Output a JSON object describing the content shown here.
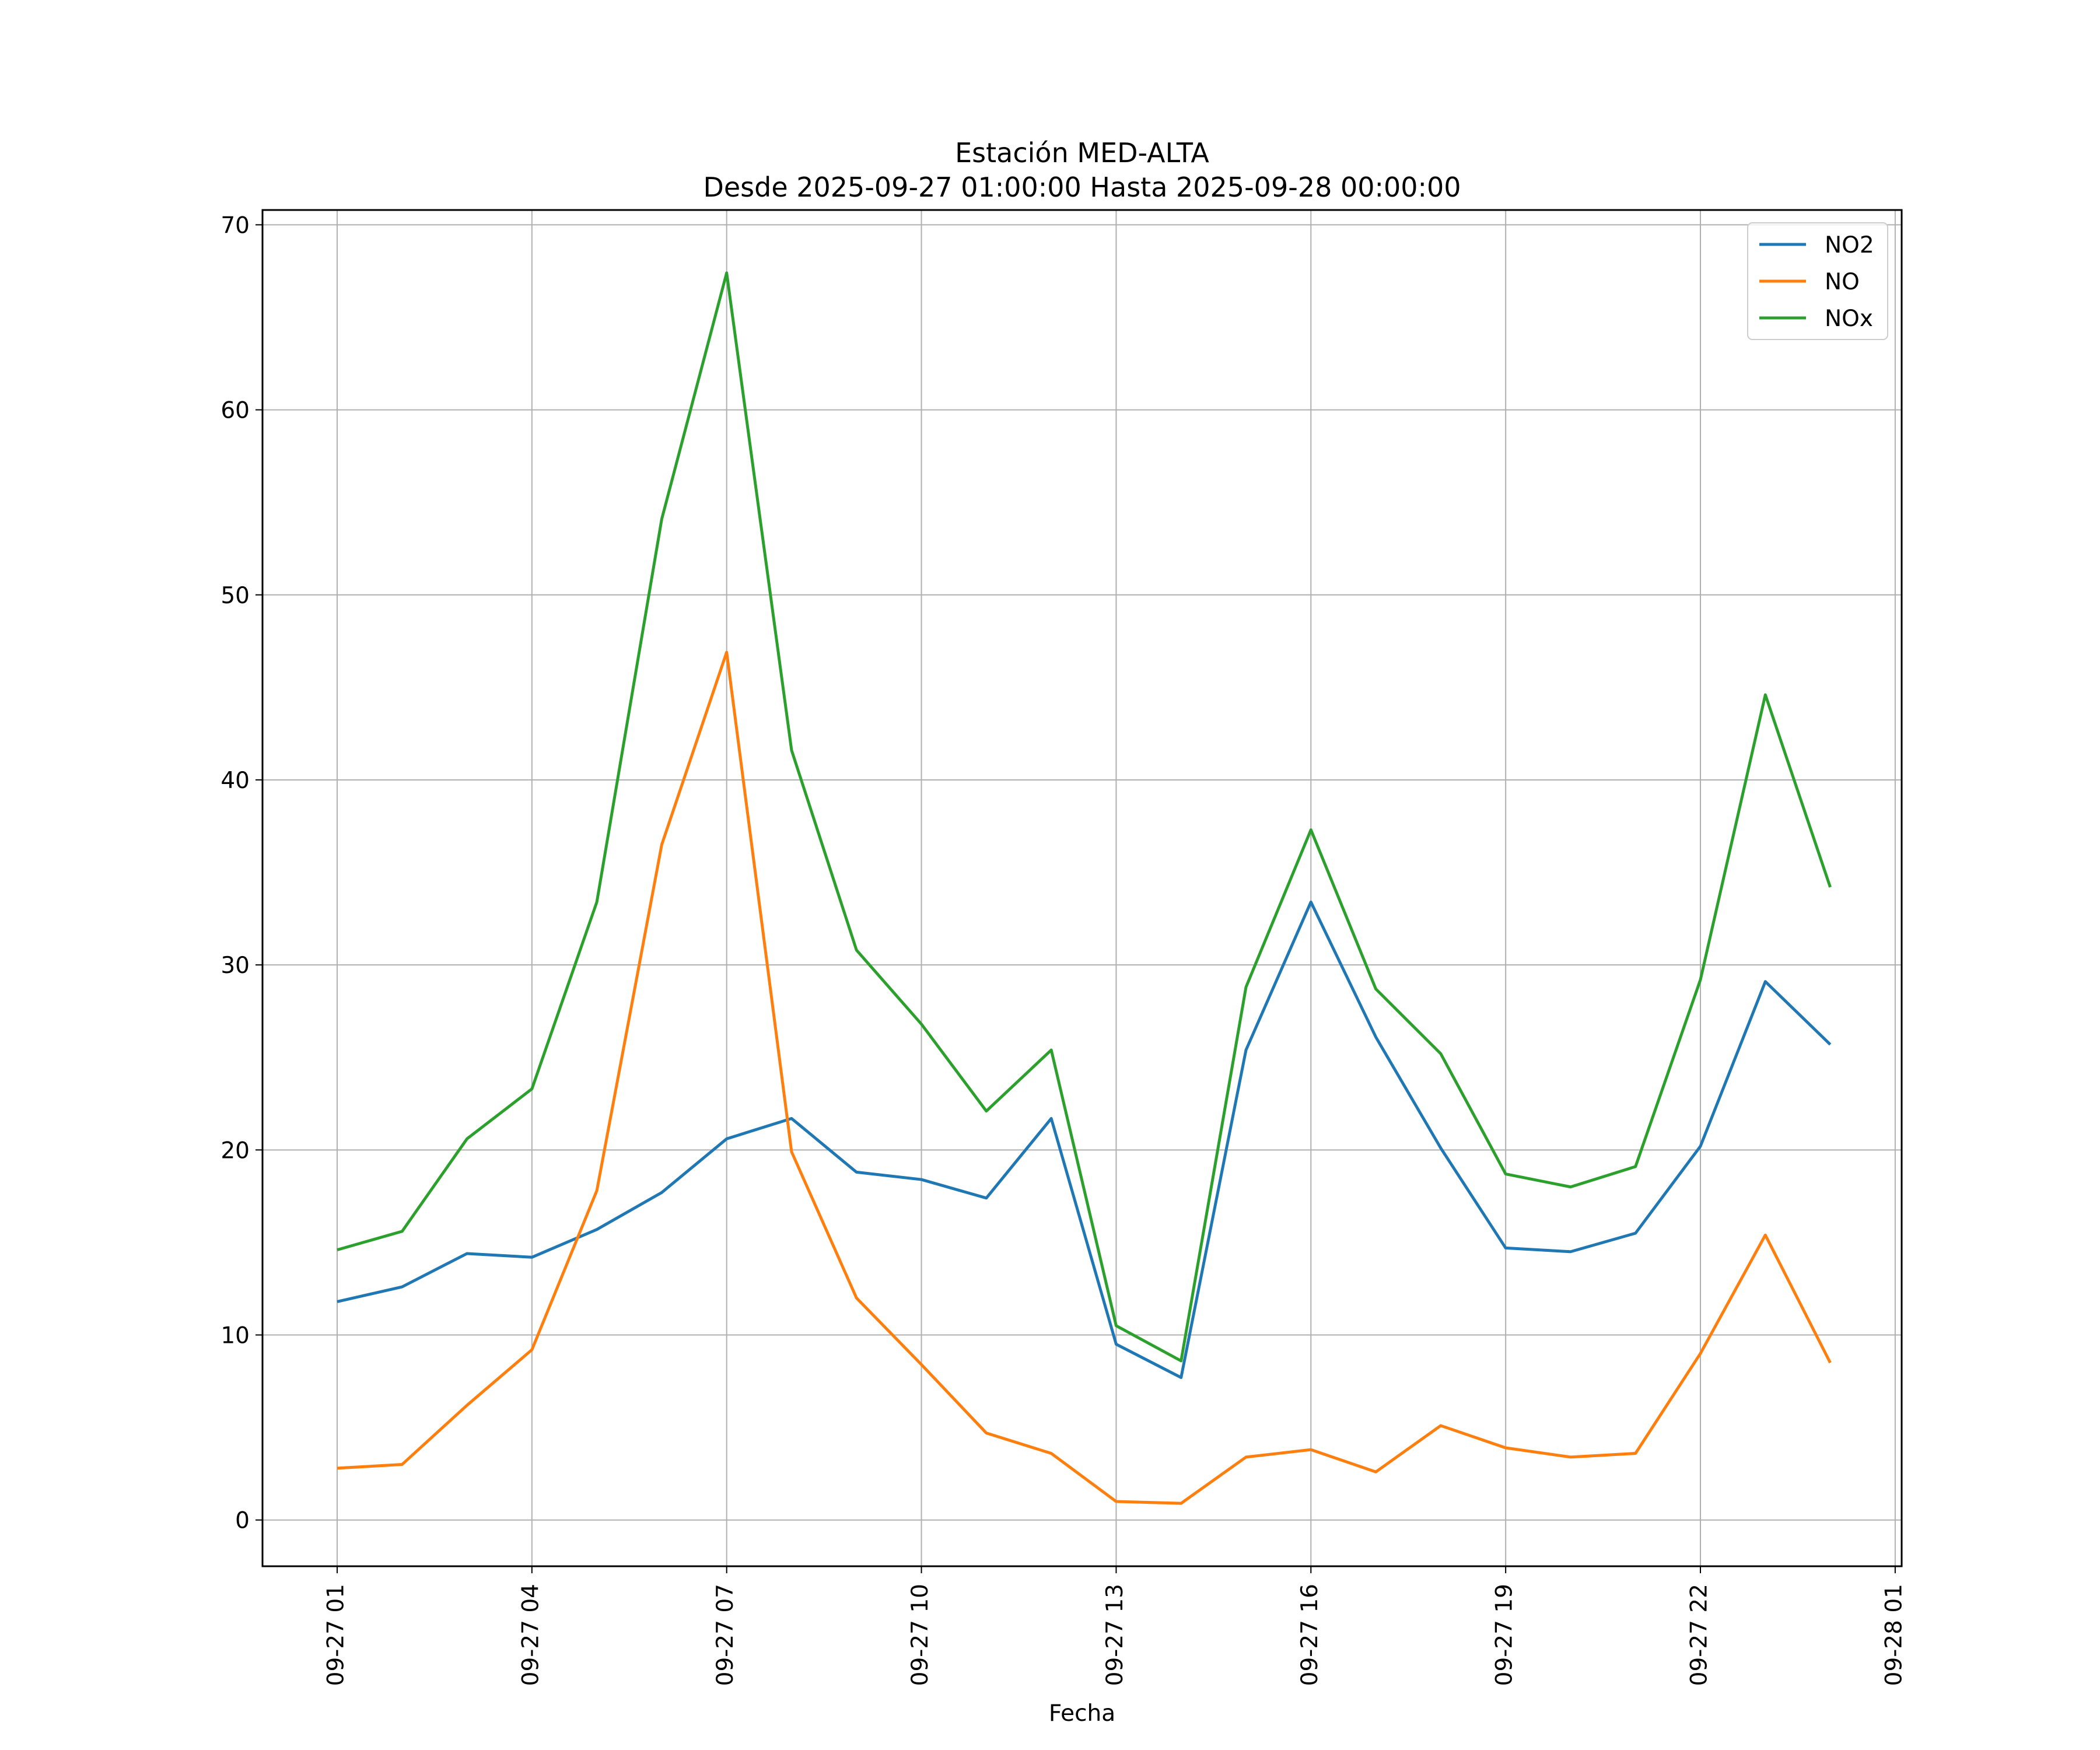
{
  "chart_data": {
    "type": "line",
    "title_line1": "Estación MED-ALTA",
    "title_line2": "Desde 2025-09-27 01:00:00 Hasta 2025-09-28 00:00:00",
    "xlabel": "Fecha",
    "ylabel": "",
    "x_hours": [
      1,
      2,
      3,
      4,
      5,
      6,
      7,
      8,
      9,
      10,
      11,
      12,
      13,
      14,
      15,
      16,
      17,
      18,
      19,
      20,
      21,
      22,
      23,
      24
    ],
    "xlim_hours": [
      -0.15,
      25.1
    ],
    "ylim": [
      -2.5,
      70.8
    ],
    "yticks": [
      0,
      10,
      20,
      30,
      40,
      50,
      60,
      70
    ],
    "xticks": [
      {
        "hour": 1,
        "label": "09-27 01"
      },
      {
        "hour": 4,
        "label": "09-27 04"
      },
      {
        "hour": 7,
        "label": "09-27 07"
      },
      {
        "hour": 10,
        "label": "09-27 10"
      },
      {
        "hour": 13,
        "label": "09-27 13"
      },
      {
        "hour": 16,
        "label": "09-27 16"
      },
      {
        "hour": 19,
        "label": "09-27 19"
      },
      {
        "hour": 22,
        "label": "09-27 22"
      },
      {
        "hour": 25,
        "label": "09-28 01"
      }
    ],
    "grid": true,
    "legend_position": "top-right",
    "series": [
      {
        "name": "NO2",
        "color": "#1f77b4",
        "values": [
          11.8,
          12.6,
          14.4,
          14.2,
          15.7,
          17.7,
          20.6,
          21.7,
          18.8,
          18.4,
          17.4,
          21.7,
          9.5,
          7.7,
          25.4,
          33.4,
          26.1,
          20.1,
          14.7,
          14.5,
          15.5,
          20.2,
          29.1,
          25.7
        ]
      },
      {
        "name": "NO",
        "color": "#ff7f0e",
        "values": [
          2.8,
          3.0,
          6.2,
          9.2,
          17.8,
          36.5,
          46.9,
          19.9,
          12.0,
          8.4,
          4.7,
          3.6,
          1.0,
          0.9,
          3.4,
          3.8,
          2.6,
          5.1,
          3.9,
          3.4,
          3.6,
          9.0,
          15.4,
          8.5
        ]
      },
      {
        "name": "NOx",
        "color": "#2ca02c",
        "values": [
          14.6,
          15.6,
          20.6,
          23.3,
          33.4,
          54.1,
          67.4,
          41.6,
          30.8,
          26.8,
          22.1,
          25.4,
          10.5,
          8.6,
          28.8,
          37.3,
          28.7,
          25.2,
          18.7,
          18.0,
          19.1,
          29.2,
          44.6,
          34.2
        ]
      }
    ]
  }
}
